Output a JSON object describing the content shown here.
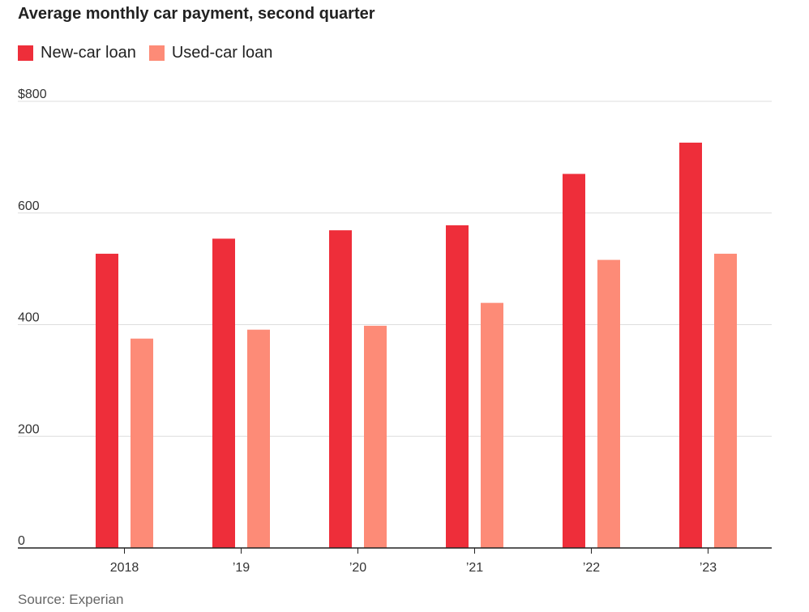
{
  "chart_data": {
    "type": "bar",
    "title": "Average monthly car payment, second quarter",
    "categories": [
      "2018",
      "’19",
      "’20",
      "’21",
      "’22",
      "’23"
    ],
    "series": [
      {
        "name": "New-car loan",
        "color": "#ee2e3a",
        "values": [
          527,
          554,
          569,
          578,
          670,
          726
        ]
      },
      {
        "name": "Used-car loan",
        "color": "#fd8b77",
        "values": [
          375,
          391,
          398,
          439,
          516,
          527
        ]
      }
    ],
    "ylim": [
      0,
      800
    ],
    "yticks": [
      0,
      200,
      400,
      600,
      800
    ],
    "ytick_labels": [
      "0",
      "200",
      "400",
      "600",
      "$800"
    ],
    "xlabel": "",
    "ylabel": "",
    "grid": true,
    "legend_position": "top-left",
    "source": "Source: Experian"
  }
}
